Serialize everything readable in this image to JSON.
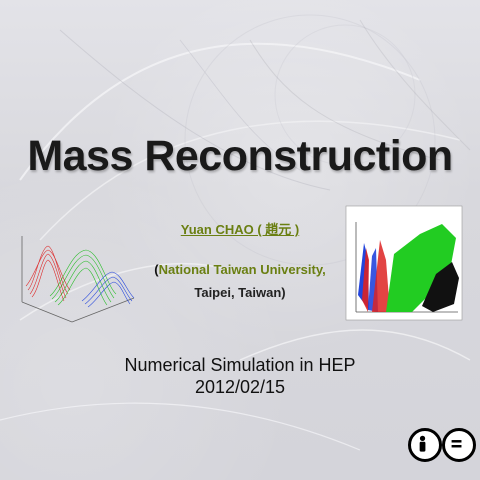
{
  "slide": {
    "title": "Mass Reconstruction",
    "author": "Yuan CHAO ( 趙元 )",
    "affiliation": {
      "open_paren": "(",
      "university": "National Taiwan University,",
      "location": "Taipei, Taiwan)"
    },
    "subtitle": "Numerical Simulation in HEP",
    "date": "2012/02/15",
    "license_icons": [
      "cc-attribution-icon",
      "cc-noderivs-icon"
    ],
    "colors": {
      "title": "#1a1a1a",
      "accent": "#6a7f12",
      "plot_green": "#22cc22",
      "plot_red": "#dd2222",
      "plot_blue": "#2244dd"
    }
  }
}
